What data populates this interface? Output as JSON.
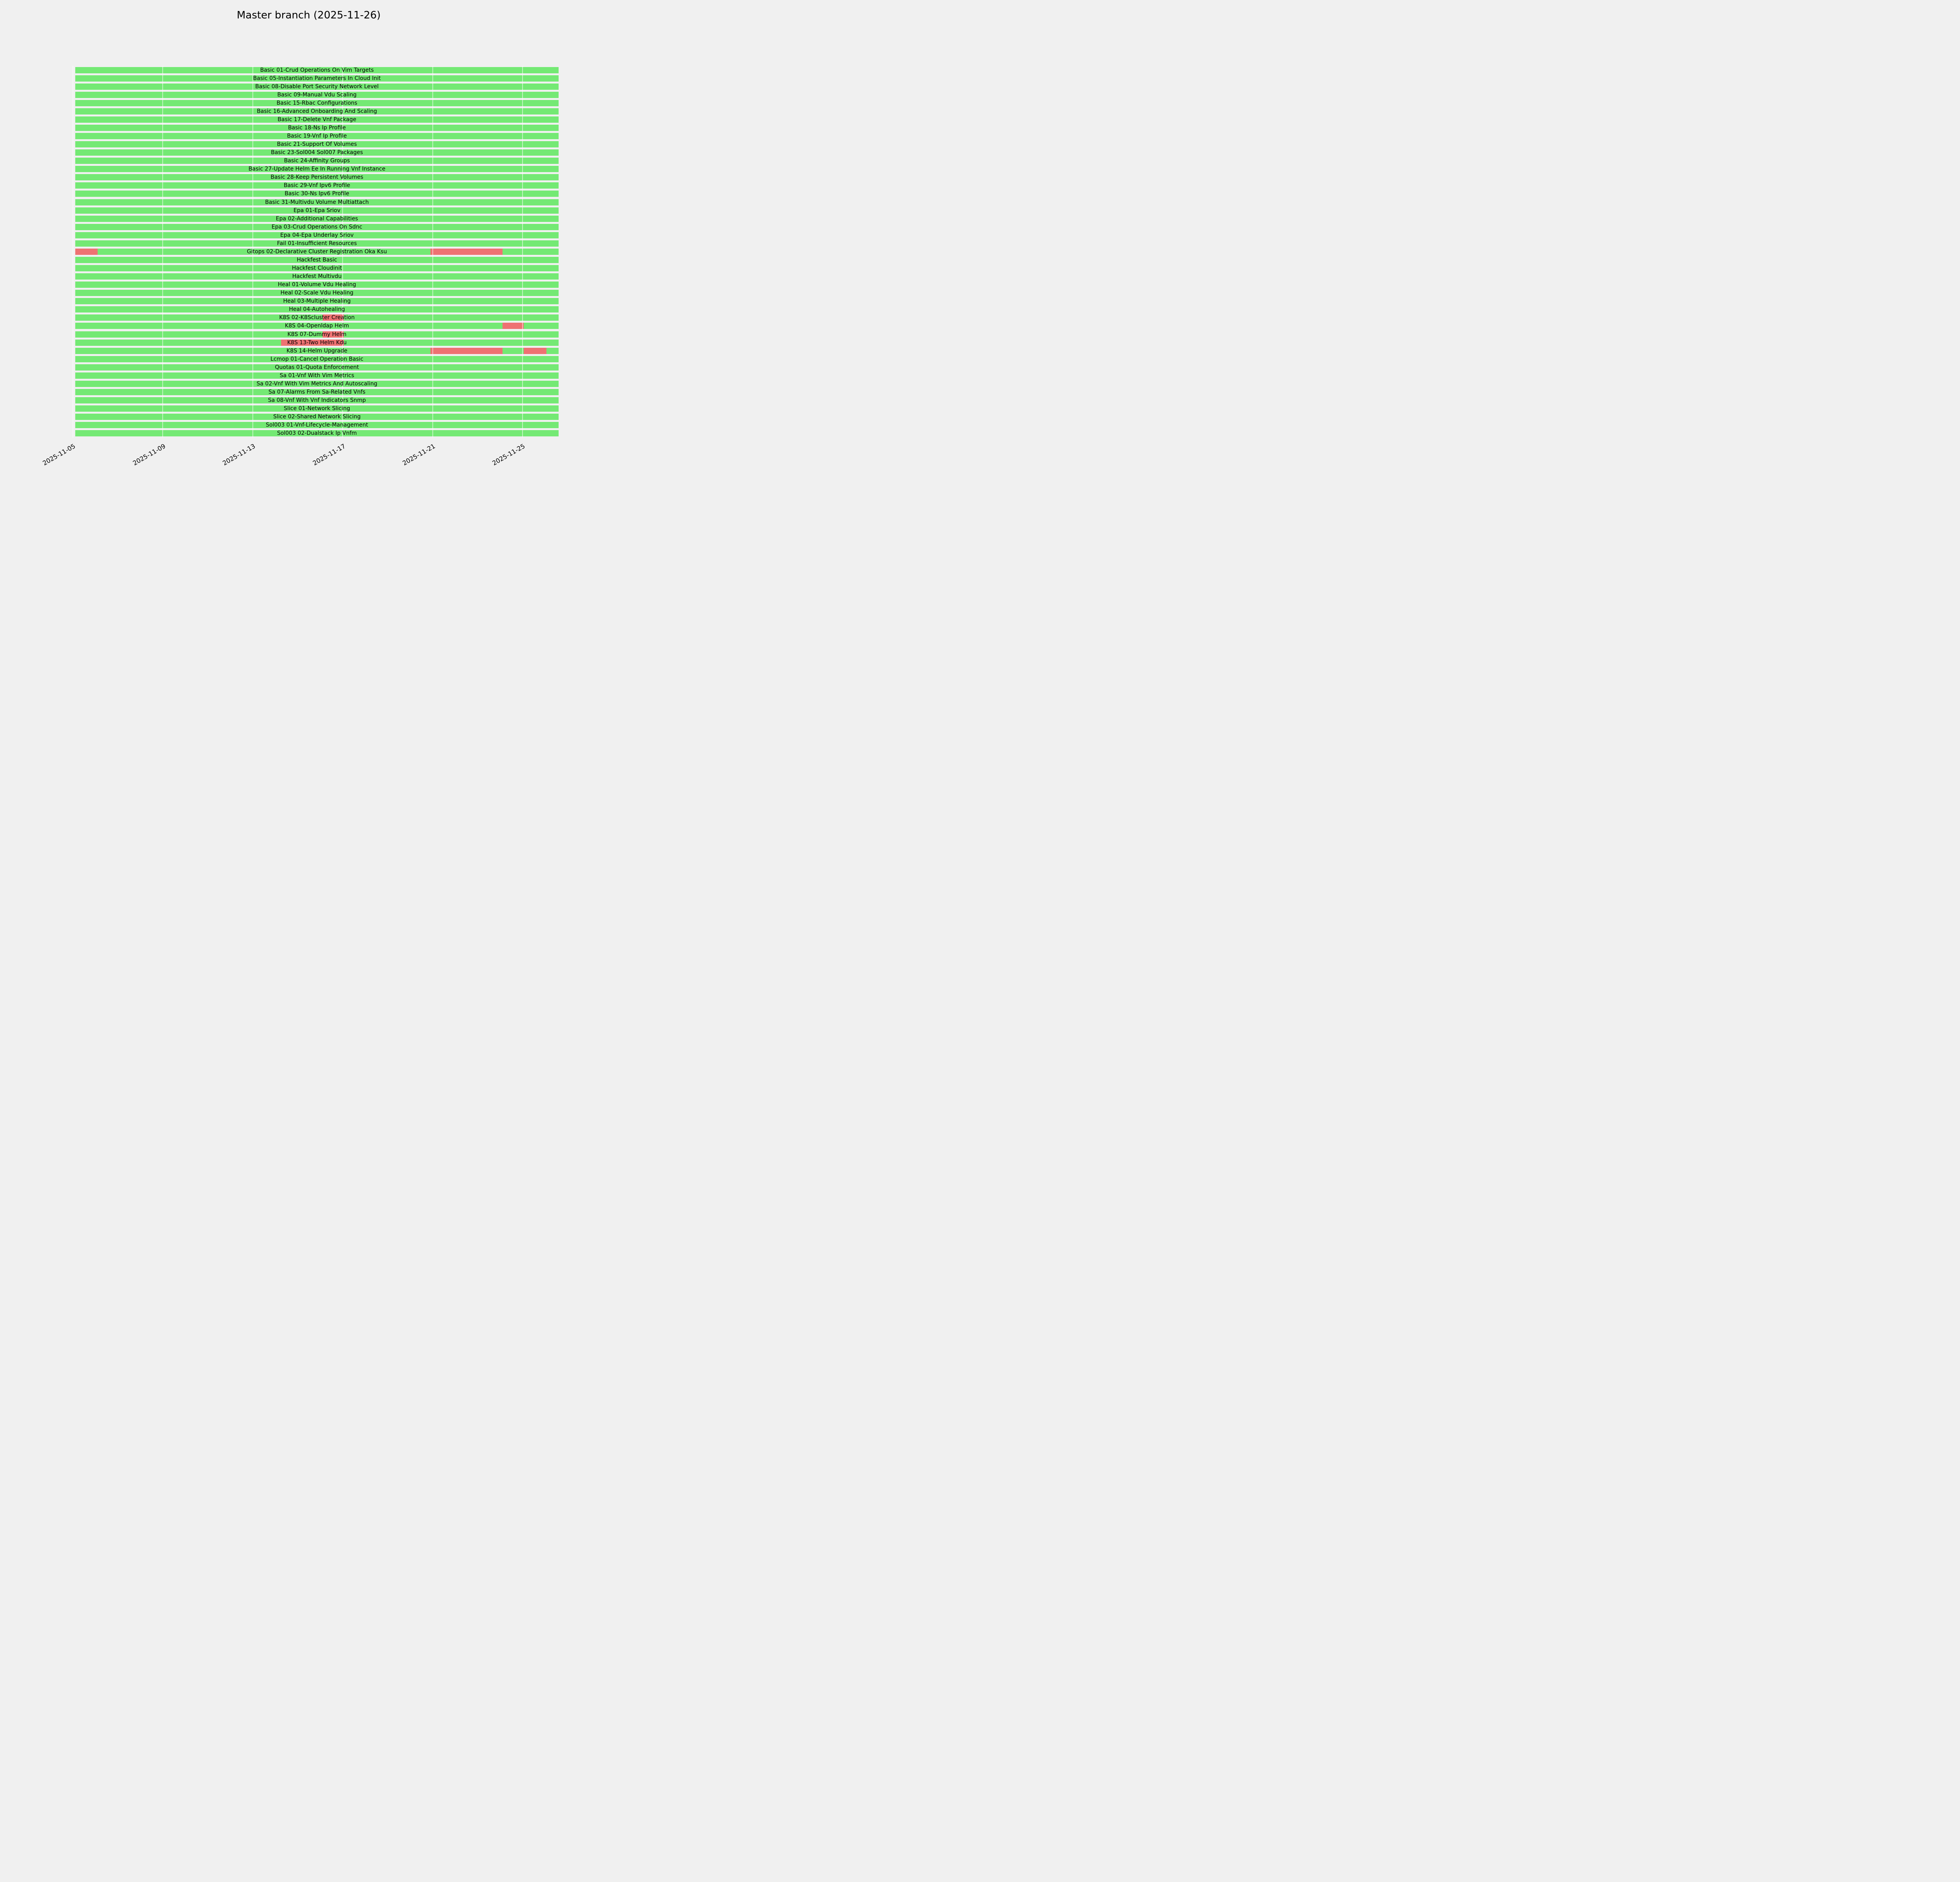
{
  "title": "Master branch (2025-11-26)",
  "chart_data": {
    "type": "gantt",
    "title": "Master branch (2025-11-26)",
    "xlabel": "",
    "ylabel": "",
    "legend": "none",
    "grid": "vertical",
    "axis": {
      "start_day": 5.0,
      "end_day": 26.7,
      "month": "2025-11",
      "bar_start_day": 5.1,
      "bar_end_day": 26.6
    },
    "ticks": [
      {
        "day": 5,
        "label": "2025-11-05"
      },
      {
        "day": 9,
        "label": "2025-11-09"
      },
      {
        "day": 13,
        "label": "2025-11-13"
      },
      {
        "day": 17,
        "label": "2025-11-17"
      },
      {
        "day": 21,
        "label": "2025-11-21"
      },
      {
        "day": 25,
        "label": "2025-11-25"
      }
    ],
    "colors": {
      "pass": "#74e974",
      "fail": "#ee7272",
      "background": "#f0f0f0",
      "gridline": "rgba(255,255,255,0.55)",
      "text": "#000000"
    },
    "rows": [
      {
        "label": "Basic 01-Crud Operations On Vim Targets",
        "segments": [
          {
            "start": 5.1,
            "end": 26.6,
            "status": "pass"
          }
        ]
      },
      {
        "label": "Basic 05-Instantiation Parameters In Cloud Init",
        "segments": [
          {
            "start": 5.1,
            "end": 26.6,
            "status": "pass"
          }
        ]
      },
      {
        "label": "Basic 08-Disable Port Security Network Level",
        "segments": [
          {
            "start": 5.1,
            "end": 26.6,
            "status": "pass"
          }
        ]
      },
      {
        "label": "Basic 09-Manual Vdu Scaling",
        "segments": [
          {
            "start": 5.1,
            "end": 26.6,
            "status": "pass"
          }
        ]
      },
      {
        "label": "Basic 15-Rbac Configurations",
        "segments": [
          {
            "start": 5.1,
            "end": 26.6,
            "status": "pass"
          }
        ]
      },
      {
        "label": "Basic 16-Advanced Onboarding And Scaling",
        "segments": [
          {
            "start": 5.1,
            "end": 26.6,
            "status": "pass"
          }
        ]
      },
      {
        "label": "Basic 17-Delete Vnf Package",
        "segments": [
          {
            "start": 5.1,
            "end": 26.6,
            "status": "pass"
          }
        ]
      },
      {
        "label": "Basic 18-Ns Ip Profile",
        "segments": [
          {
            "start": 5.1,
            "end": 26.6,
            "status": "pass"
          }
        ]
      },
      {
        "label": "Basic 19-Vnf Ip Profile",
        "segments": [
          {
            "start": 5.1,
            "end": 26.6,
            "status": "pass"
          }
        ]
      },
      {
        "label": "Basic 21-Support Of Volumes",
        "segments": [
          {
            "start": 5.1,
            "end": 26.6,
            "status": "pass"
          }
        ]
      },
      {
        "label": "Basic 23-Sol004 Sol007 Packages",
        "segments": [
          {
            "start": 5.1,
            "end": 26.6,
            "status": "pass"
          }
        ]
      },
      {
        "label": "Basic 24-Affinity Groups",
        "segments": [
          {
            "start": 5.1,
            "end": 26.6,
            "status": "pass"
          }
        ]
      },
      {
        "label": "Basic 27-Update Helm Ee In Running Vnf Instance",
        "segments": [
          {
            "start": 5.1,
            "end": 26.6,
            "status": "pass"
          }
        ]
      },
      {
        "label": "Basic 28-Keep Persistent Volumes",
        "segments": [
          {
            "start": 5.1,
            "end": 26.6,
            "status": "pass"
          }
        ]
      },
      {
        "label": "Basic 29-Vnf Ipv6 Profile",
        "segments": [
          {
            "start": 5.1,
            "end": 26.6,
            "status": "pass"
          }
        ]
      },
      {
        "label": "Basic 30-Ns Ipv6 Profile",
        "segments": [
          {
            "start": 5.1,
            "end": 26.6,
            "status": "pass"
          }
        ]
      },
      {
        "label": "Basic 31-Multivdu Volume Multiattach",
        "segments": [
          {
            "start": 5.1,
            "end": 26.6,
            "status": "pass"
          }
        ]
      },
      {
        "label": "Epa 01-Epa Sriov",
        "segments": [
          {
            "start": 5.1,
            "end": 26.6,
            "status": "pass"
          }
        ]
      },
      {
        "label": "Epa 02-Additional Capabilities",
        "segments": [
          {
            "start": 5.1,
            "end": 26.6,
            "status": "pass"
          }
        ]
      },
      {
        "label": "Epa 03-Crud Operations On Sdnc",
        "segments": [
          {
            "start": 5.1,
            "end": 26.6,
            "status": "pass"
          }
        ]
      },
      {
        "label": "Epa 04-Epa Underlay Sriov",
        "segments": [
          {
            "start": 5.1,
            "end": 26.6,
            "status": "pass"
          }
        ]
      },
      {
        "label": "Fail 01-Insufficient Resources",
        "segments": [
          {
            "start": 5.1,
            "end": 26.6,
            "status": "pass"
          }
        ]
      },
      {
        "label": "Gitops 02-Declarative Cluster Registration Oka Ksu",
        "segments": [
          {
            "start": 5.1,
            "end": 6.1,
            "status": "fail"
          },
          {
            "start": 6.1,
            "end": 20.9,
            "status": "pass"
          },
          {
            "start": 20.9,
            "end": 24.1,
            "status": "fail"
          },
          {
            "start": 24.1,
            "end": 26.6,
            "status": "pass"
          }
        ]
      },
      {
        "label": "Hackfest Basic",
        "segments": [
          {
            "start": 5.1,
            "end": 26.6,
            "status": "pass"
          }
        ]
      },
      {
        "label": "Hackfest Cloudinit",
        "segments": [
          {
            "start": 5.1,
            "end": 26.6,
            "status": "pass"
          }
        ]
      },
      {
        "label": "Hackfest Multivdu",
        "segments": [
          {
            "start": 5.1,
            "end": 26.6,
            "status": "pass"
          }
        ]
      },
      {
        "label": "Heal 01-Volume Vdu Healing",
        "segments": [
          {
            "start": 5.1,
            "end": 26.6,
            "status": "pass"
          }
        ]
      },
      {
        "label": "Heal 02-Scale Vdu Healing",
        "segments": [
          {
            "start": 5.1,
            "end": 26.6,
            "status": "pass"
          }
        ]
      },
      {
        "label": "Heal 03-Multiple Healing",
        "segments": [
          {
            "start": 5.1,
            "end": 26.6,
            "status": "pass"
          }
        ]
      },
      {
        "label": "Heal 04-Autohealing",
        "segments": [
          {
            "start": 5.1,
            "end": 26.6,
            "status": "pass"
          }
        ]
      },
      {
        "label": "K8S 02-K8Scluster Creation",
        "segments": [
          {
            "start": 5.1,
            "end": 16.1,
            "status": "pass"
          },
          {
            "start": 16.1,
            "end": 17.05,
            "status": "fail"
          },
          {
            "start": 17.05,
            "end": 26.6,
            "status": "pass"
          }
        ]
      },
      {
        "label": "K8S 04-Openldap Helm",
        "segments": [
          {
            "start": 5.1,
            "end": 24.1,
            "status": "pass"
          },
          {
            "start": 24.1,
            "end": 25.05,
            "status": "fail"
          },
          {
            "start": 25.05,
            "end": 26.6,
            "status": "pass"
          }
        ]
      },
      {
        "label": "K8S 07-Dummy Helm",
        "segments": [
          {
            "start": 5.1,
            "end": 16.1,
            "status": "pass"
          },
          {
            "start": 16.1,
            "end": 17.05,
            "status": "fail"
          },
          {
            "start": 17.05,
            "end": 26.6,
            "status": "pass"
          }
        ]
      },
      {
        "label": "K8S 13-Two Helm Kdu",
        "segments": [
          {
            "start": 5.1,
            "end": 14.25,
            "status": "pass"
          },
          {
            "start": 14.25,
            "end": 17.05,
            "status": "fail"
          },
          {
            "start": 17.05,
            "end": 26.6,
            "status": "pass"
          }
        ]
      },
      {
        "label": "K8S 14-Helm Upgrade",
        "segments": [
          {
            "start": 5.1,
            "end": 20.9,
            "status": "pass"
          },
          {
            "start": 20.9,
            "end": 24.1,
            "status": "fail"
          },
          {
            "start": 24.1,
            "end": 25.05,
            "status": "pass"
          },
          {
            "start": 25.05,
            "end": 26.05,
            "status": "fail"
          },
          {
            "start": 26.05,
            "end": 26.6,
            "status": "pass"
          }
        ]
      },
      {
        "label": "Lcmop 01-Cancel Operation Basic",
        "segments": [
          {
            "start": 5.1,
            "end": 26.6,
            "status": "pass"
          }
        ]
      },
      {
        "label": "Quotas 01-Quota Enforcement",
        "segments": [
          {
            "start": 5.1,
            "end": 26.6,
            "status": "pass"
          }
        ]
      },
      {
        "label": "Sa 01-Vnf With Vim Metrics",
        "segments": [
          {
            "start": 5.1,
            "end": 26.6,
            "status": "pass"
          }
        ]
      },
      {
        "label": "Sa 02-Vnf With Vim Metrics And Autoscaling",
        "segments": [
          {
            "start": 5.1,
            "end": 26.6,
            "status": "pass"
          }
        ]
      },
      {
        "label": "Sa 07-Alarms From Sa-Related Vnfs",
        "segments": [
          {
            "start": 5.1,
            "end": 26.6,
            "status": "pass"
          }
        ]
      },
      {
        "label": "Sa 08-Vnf With Vnf Indicators Snmp",
        "segments": [
          {
            "start": 5.1,
            "end": 26.6,
            "status": "pass"
          }
        ]
      },
      {
        "label": "Slice 01-Network Slicing",
        "segments": [
          {
            "start": 5.1,
            "end": 26.6,
            "status": "pass"
          }
        ]
      },
      {
        "label": "Slice 02-Shared Network Slicing",
        "segments": [
          {
            "start": 5.1,
            "end": 26.6,
            "status": "pass"
          }
        ]
      },
      {
        "label": "Sol003 01-Vnf-Lifecycle-Management",
        "segments": [
          {
            "start": 5.1,
            "end": 26.6,
            "status": "pass"
          }
        ]
      },
      {
        "label": "Sol003 02-Dualstack Ip Vnfm",
        "segments": [
          {
            "start": 5.1,
            "end": 26.6,
            "status": "pass"
          }
        ]
      }
    ]
  }
}
